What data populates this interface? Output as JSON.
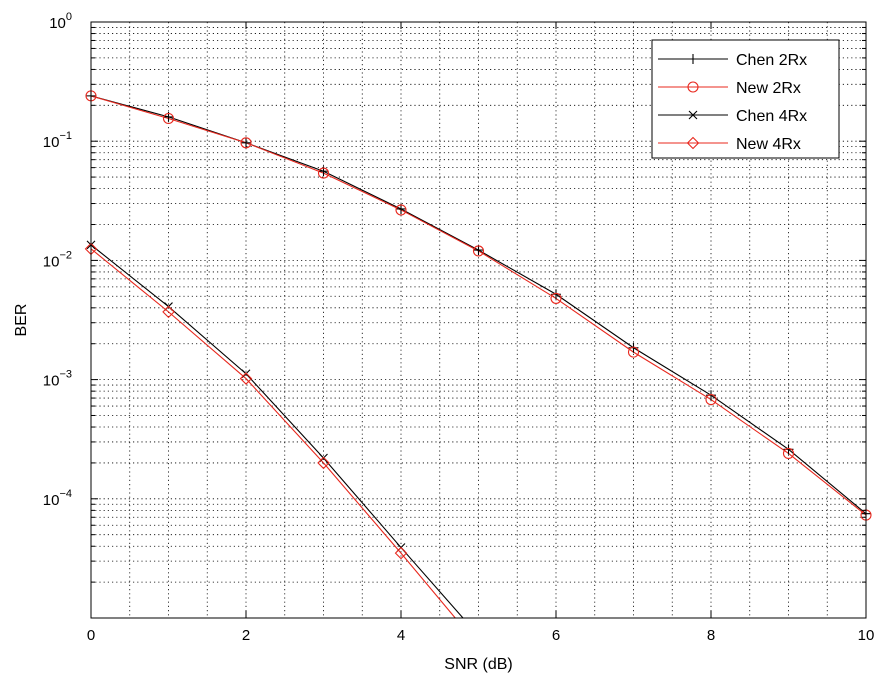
{
  "chart_data": {
    "type": "line",
    "title": "",
    "xlabel": "SNR (dB)",
    "ylabel": "BER",
    "xlim": [
      0,
      10
    ],
    "ylim": [
      1e-05,
      1
    ],
    "yscale": "log",
    "grid": true,
    "legend_position": "top-right",
    "x_ticks": [
      0,
      2,
      4,
      6,
      8,
      10
    ],
    "y_ticks": [
      {
        "value": 1,
        "base": "10",
        "exp": "0"
      },
      {
        "value": 0.1,
        "base": "10",
        "exp": "−1"
      },
      {
        "value": 0.01,
        "base": "10",
        "exp": "−2"
      },
      {
        "value": 0.001,
        "base": "10",
        "exp": "−3"
      },
      {
        "value": 0.0001,
        "base": "10",
        "exp": "−4"
      }
    ],
    "series": [
      {
        "name": "Chen 2Rx",
        "color": "#000000",
        "marker": "plus",
        "x": [
          0,
          1,
          2,
          3,
          4,
          5,
          6,
          7,
          8,
          9,
          10
        ],
        "y": [
          0.24,
          0.16,
          0.097,
          0.056,
          0.027,
          0.0122,
          0.0052,
          0.00185,
          0.00074,
          0.00026,
          7.5e-05
        ]
      },
      {
        "name": "New 2Rx",
        "color": "#e8281e",
        "marker": "circle",
        "x": [
          0,
          1,
          2,
          3,
          4,
          5,
          6,
          7,
          8,
          9,
          10
        ],
        "y": [
          0.24,
          0.155,
          0.097,
          0.054,
          0.0265,
          0.012,
          0.0048,
          0.0017,
          0.00068,
          0.00024,
          7.3e-05
        ]
      },
      {
        "name": "Chen 4Rx",
        "color": "#000000",
        "marker": "x",
        "x": [
          0,
          1,
          2,
          3,
          4,
          4.8
        ],
        "y": [
          0.0135,
          0.0041,
          0.00112,
          0.00022,
          3.9e-05,
          1e-05
        ]
      },
      {
        "name": "New 4Rx",
        "color": "#e8281e",
        "marker": "diamond",
        "x": [
          0,
          1,
          2,
          3,
          4,
          4.7
        ],
        "y": [
          0.0125,
          0.0037,
          0.00102,
          0.0002,
          3.5e-05,
          1e-05
        ]
      }
    ]
  }
}
